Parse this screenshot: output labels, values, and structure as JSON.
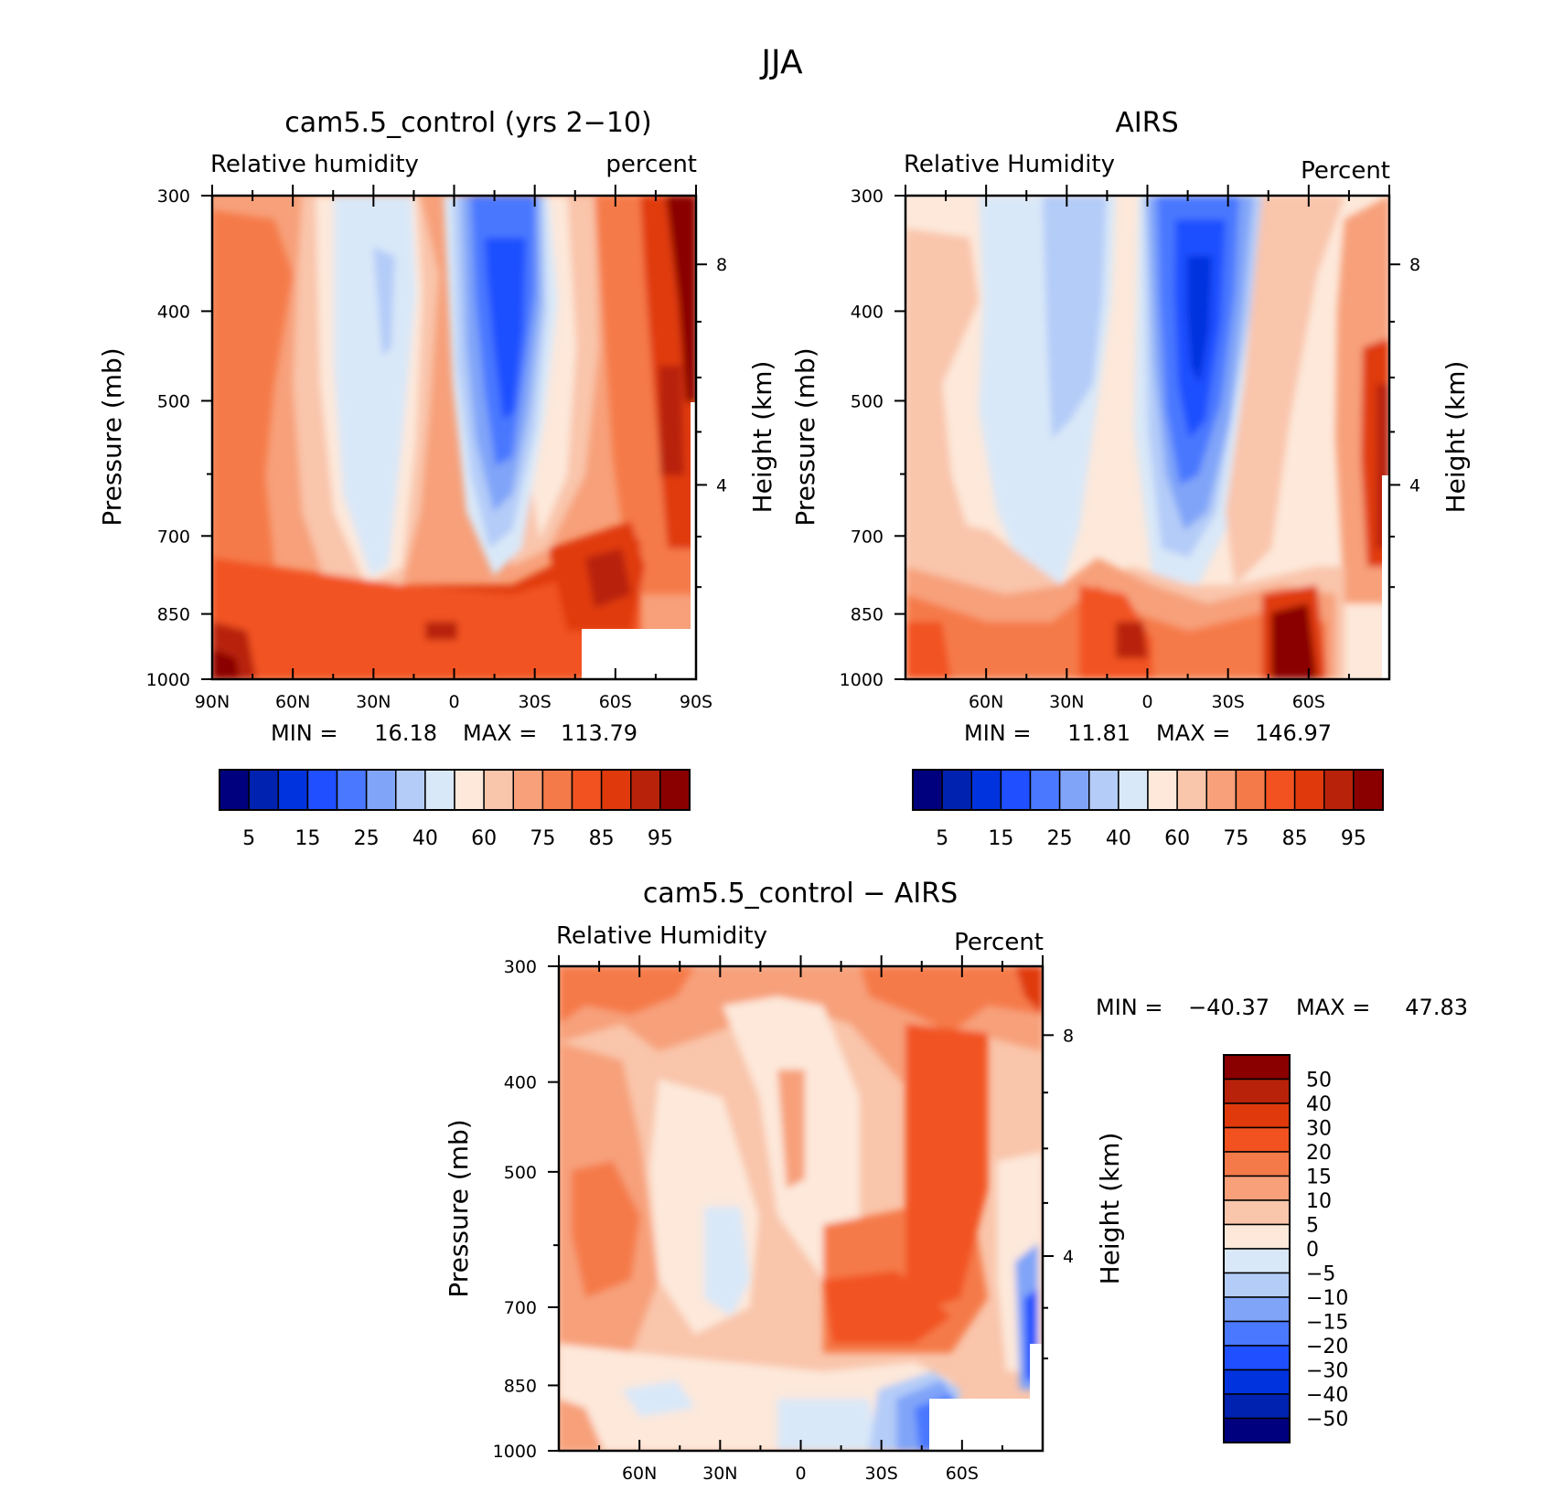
{
  "figure_title": "JJA",
  "colors": {
    "rh_scale": [
      "#00007f",
      "#0022b0",
      "#0033dd",
      "#1f4fff",
      "#4a78ff",
      "#80a4f8",
      "#b4ccf8",
      "#d9e8f8",
      "#fde8da",
      "#f9c5ab",
      "#f7a07a",
      "#f57a4a",
      "#f25220",
      "#e03a0c",
      "#b8220a",
      "#8a0000"
    ],
    "diff_scale": [
      "#00007f",
      "#0022b0",
      "#0033dd",
      "#1f4fff",
      "#4a78ff",
      "#80a4f8",
      "#b4ccf8",
      "#d9e8f8",
      "#fde8da",
      "#f9c5ab",
      "#f7a07a",
      "#f57a4a",
      "#f25220",
      "#e03a0c",
      "#b8220a",
      "#8a0000"
    ]
  },
  "chart_data": [
    {
      "type": "heatmap",
      "title": "cam5.5_control (yrs 2−10)",
      "left_label": "Relative humidity",
      "right_label": "percent",
      "ylabel": "Pressure (mb)",
      "y2label": "Height (km)",
      "x_ticks": [
        "90N",
        "60N",
        "30N",
        "0",
        "30S",
        "60S",
        "90S"
      ],
      "y_ticks": [
        "300",
        "400",
        "500",
        "700",
        "850",
        "1000"
      ],
      "y2_ticks": [
        "8",
        "4"
      ],
      "min_label": "MIN =",
      "min_value": "16.18",
      "max_label": "MAX =",
      "max_value": "113.79",
      "colorbar_labels": [
        "5",
        "15",
        "25",
        "40",
        "60",
        "75",
        "85",
        "95"
      ],
      "x_range": [
        "90N",
        "90S"
      ],
      "y_range": [
        1000,
        300
      ],
      "y_scale": "log"
    },
    {
      "type": "heatmap",
      "title": "AIRS",
      "left_label": "Relative Humidity",
      "right_label": "Percent",
      "ylabel": "Pressure (mb)",
      "y2label": "Height (km)",
      "x_ticks": [
        "60N",
        "30N",
        "0",
        "30S",
        "60S"
      ],
      "y_ticks": [
        "300",
        "400",
        "500",
        "700",
        "850",
        "1000"
      ],
      "y2_ticks": [
        "8",
        "4"
      ],
      "min_label": "MIN =",
      "min_value": "11.81",
      "max_label": "MAX =",
      "max_value": "146.97",
      "colorbar_labels": [
        "5",
        "15",
        "25",
        "40",
        "60",
        "75",
        "85",
        "95"
      ],
      "y_range": [
        1000,
        300
      ],
      "y_scale": "log"
    },
    {
      "type": "heatmap",
      "title": "cam5.5_control − AIRS",
      "left_label": "Relative Humidity",
      "right_label": "Percent",
      "ylabel": "Pressure (mb)",
      "y2label": "Height (km)",
      "x_ticks": [
        "60N",
        "30N",
        "0",
        "30S",
        "60S"
      ],
      "y_ticks": [
        "300",
        "400",
        "500",
        "700",
        "850",
        "1000"
      ],
      "y2_ticks": [
        "8",
        "4"
      ],
      "min_label": "MIN =",
      "min_value": "−40.37",
      "max_label": "MAX =",
      "max_value": "47.83",
      "colorbar_labels": [
        "50",
        "40",
        "30",
        "20",
        "15",
        "10",
        "5",
        "0",
        "−5",
        "−10",
        "−15",
        "−20",
        "−30",
        "−40",
        "−50"
      ],
      "y_range": [
        1000,
        300
      ],
      "y_scale": "log"
    }
  ]
}
